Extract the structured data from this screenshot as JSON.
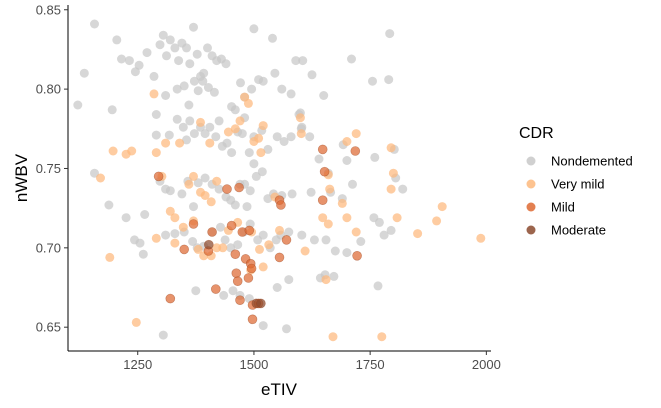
{
  "chart_data": {
    "type": "scatter",
    "title": "",
    "xlabel": "eTIV",
    "ylabel": "nWBV",
    "xlim": [
      1100,
      2010
    ],
    "ylim": [
      0.635,
      0.853
    ],
    "x_ticks": [
      1250,
      1500,
      1750,
      2000
    ],
    "y_ticks": [
      0.65,
      0.7,
      0.75,
      0.8,
      0.85
    ],
    "x_tick_labels": [
      "1250",
      "1500",
      "1750",
      "2000"
    ],
    "y_tick_labels": [
      "0.65",
      "0.70",
      "0.75",
      "0.80",
      "0.85"
    ],
    "grid": false,
    "legend": {
      "title": "CDR",
      "position": "right",
      "entries": [
        "Nondemented",
        "Very mild",
        "Mild",
        "Moderate"
      ]
    },
    "colors": {
      "Nondemented": "#c8c8c8",
      "Very mild": "#fdb97d",
      "Mild": "#de6a33",
      "Moderate": "#8b4a2e"
    },
    "series": [
      {
        "name": "Nondemented",
        "points": [
          [
            1121,
            0.79
          ],
          [
            1135,
            0.81
          ],
          [
            1157,
            0.841
          ],
          [
            1205,
            0.831
          ],
          [
            1215,
            0.819
          ],
          [
            1232,
            0.818
          ],
          [
            1253,
            0.815
          ],
          [
            1245,
            0.811
          ],
          [
            1270,
            0.823
          ],
          [
            1285,
            0.808
          ],
          [
            1298,
            0.828
          ],
          [
            1305,
            0.834
          ],
          [
            1312,
            0.821
          ],
          [
            1320,
            0.831
          ],
          [
            1330,
            0.826
          ],
          [
            1338,
            0.818
          ],
          [
            1345,
            0.829
          ],
          [
            1355,
            0.826
          ],
          [
            1362,
            0.816
          ],
          [
            1370,
            0.839
          ],
          [
            1378,
            0.822
          ],
          [
            1385,
            0.808
          ],
          [
            1392,
            0.81
          ],
          [
            1400,
            0.826
          ],
          [
            1410,
            0.821
          ],
          [
            1420,
            0.818
          ],
          [
            1430,
            0.819
          ],
          [
            1440,
            0.816
          ],
          [
            1500,
            0.838
          ],
          [
            1540,
            0.832
          ],
          [
            1590,
            0.818
          ],
          [
            1605,
            0.818
          ],
          [
            1625,
            0.809
          ],
          [
            1710,
            0.819
          ],
          [
            1792,
            0.835
          ],
          [
            1790,
            0.806
          ],
          [
            1195,
            0.787
          ],
          [
            1290,
            0.784
          ],
          [
            1310,
            0.796
          ],
          [
            1335,
            0.8
          ],
          [
            1350,
            0.802
          ],
          [
            1360,
            0.79
          ],
          [
            1372,
            0.805
          ],
          [
            1380,
            0.799
          ],
          [
            1390,
            0.805
          ],
          [
            1402,
            0.801
          ],
          [
            1415,
            0.798
          ],
          [
            1425,
            0.78
          ],
          [
            1452,
            0.789
          ],
          [
            1460,
            0.787
          ],
          [
            1471,
            0.804
          ],
          [
            1480,
            0.795
          ],
          [
            1495,
            0.8
          ],
          [
            1510,
            0.806
          ],
          [
            1520,
            0.805
          ],
          [
            1545,
            0.81
          ],
          [
            1560,
            0.8
          ],
          [
            1580,
            0.797
          ],
          [
            1597,
            0.784
          ],
          [
            1602,
            0.775
          ],
          [
            1650,
            0.796
          ],
          [
            1755,
            0.805
          ],
          [
            1290,
            0.771
          ],
          [
            1318,
            0.771
          ],
          [
            1335,
            0.781
          ],
          [
            1348,
            0.776
          ],
          [
            1355,
            0.768
          ],
          [
            1362,
            0.78
          ],
          [
            1372,
            0.772
          ],
          [
            1385,
            0.776
          ],
          [
            1395,
            0.772
          ],
          [
            1405,
            0.776
          ],
          [
            1418,
            0.77
          ],
          [
            1432,
            0.764
          ],
          [
            1442,
            0.766
          ],
          [
            1452,
            0.76
          ],
          [
            1465,
            0.773
          ],
          [
            1475,
            0.772
          ],
          [
            1480,
            0.782
          ],
          [
            1490,
            0.76
          ],
          [
            1500,
            0.77
          ],
          [
            1517,
            0.774
          ],
          [
            1530,
            0.762
          ],
          [
            1550,
            0.77
          ],
          [
            1565,
            0.767
          ],
          [
            1580,
            0.77
          ],
          [
            1600,
            0.785
          ],
          [
            1603,
            0.776
          ],
          [
            1620,
            0.77
          ],
          [
            1640,
            0.756
          ],
          [
            1660,
            0.747
          ],
          [
            1692,
            0.765
          ],
          [
            1700,
            0.755
          ],
          [
            1760,
            0.757
          ],
          [
            1802,
            0.762
          ],
          [
            1805,
            0.744
          ],
          [
            1820,
            0.737
          ],
          [
            1157,
            0.747
          ],
          [
            1188,
            0.727
          ],
          [
            1225,
            0.719
          ],
          [
            1265,
            0.721
          ],
          [
            1298,
            0.742
          ],
          [
            1310,
            0.737
          ],
          [
            1320,
            0.736
          ],
          [
            1345,
            0.734
          ],
          [
            1358,
            0.742
          ],
          [
            1370,
            0.726
          ],
          [
            1380,
            0.741
          ],
          [
            1395,
            0.744
          ],
          [
            1410,
            0.74
          ],
          [
            1425,
            0.737
          ],
          [
            1440,
            0.732
          ],
          [
            1450,
            0.73
          ],
          [
            1460,
            0.727
          ],
          [
            1470,
            0.74
          ],
          [
            1480,
            0.74
          ],
          [
            1485,
            0.726
          ],
          [
            1492,
            0.736
          ],
          [
            1500,
            0.753
          ],
          [
            1505,
            0.745
          ],
          [
            1518,
            0.748
          ],
          [
            1530,
            0.731
          ],
          [
            1542,
            0.734
          ],
          [
            1560,
            0.733
          ],
          [
            1582,
            0.734
          ],
          [
            1623,
            0.735
          ],
          [
            1665,
            0.735
          ],
          [
            1690,
            0.731
          ],
          [
            1712,
            0.74
          ],
          [
            1758,
            0.719
          ],
          [
            1770,
            0.716
          ],
          [
            1795,
            0.711
          ],
          [
            1243,
            0.705
          ],
          [
            1255,
            0.703
          ],
          [
            1262,
            0.696
          ],
          [
            1310,
            0.708
          ],
          [
            1330,
            0.709
          ],
          [
            1350,
            0.71
          ],
          [
            1368,
            0.704
          ],
          [
            1378,
            0.7
          ],
          [
            1392,
            0.701
          ],
          [
            1410,
            0.71
          ],
          [
            1428,
            0.713
          ],
          [
            1438,
            0.705
          ],
          [
            1450,
            0.7
          ],
          [
            1465,
            0.702
          ],
          [
            1478,
            0.71
          ],
          [
            1492,
            0.715
          ],
          [
            1508,
            0.705
          ],
          [
            1520,
            0.708
          ],
          [
            1535,
            0.7
          ],
          [
            1548,
            0.705
          ],
          [
            1558,
            0.708
          ],
          [
            1575,
            0.71
          ],
          [
            1603,
            0.708
          ],
          [
            1630,
            0.705
          ],
          [
            1655,
            0.705
          ],
          [
            1675,
            0.698
          ],
          [
            1700,
            0.697
          ],
          [
            1730,
            0.704
          ],
          [
            1780,
            0.708
          ],
          [
            1643,
            0.681
          ],
          [
            1653,
            0.683
          ],
          [
            1672,
            0.682
          ],
          [
            1767,
            0.676
          ],
          [
            1375,
            0.673
          ],
          [
            1435,
            0.67
          ],
          [
            1455,
            0.673
          ],
          [
            1470,
            0.67
          ],
          [
            1490,
            0.668
          ],
          [
            1550,
            0.675
          ],
          [
            1575,
            0.68
          ],
          [
            1305,
            0.645
          ],
          [
            1520,
            0.651
          ],
          [
            1570,
            0.649
          ]
        ]
      },
      {
        "name": "Very mild",
        "points": [
          [
            1170,
            0.744
          ],
          [
            1197,
            0.761
          ],
          [
            1225,
            0.759
          ],
          [
            1237,
            0.761
          ],
          [
            1290,
            0.76
          ],
          [
            1302,
            0.745
          ],
          [
            1310,
            0.766
          ],
          [
            1340,
            0.766
          ],
          [
            1360,
            0.74
          ],
          [
            1370,
            0.745
          ],
          [
            1385,
            0.735
          ],
          [
            1395,
            0.733
          ],
          [
            1408,
            0.729
          ],
          [
            1420,
            0.742
          ],
          [
            1445,
            0.773
          ],
          [
            1460,
            0.775
          ],
          [
            1470,
            0.78
          ],
          [
            1480,
            0.795
          ],
          [
            1488,
            0.791
          ],
          [
            1500,
            0.767
          ],
          [
            1510,
            0.769
          ],
          [
            1515,
            0.76
          ],
          [
            1320,
            0.723
          ],
          [
            1330,
            0.719
          ],
          [
            1348,
            0.713
          ],
          [
            1370,
            0.717
          ],
          [
            1380,
            0.699
          ],
          [
            1392,
            0.695
          ],
          [
            1408,
            0.695
          ],
          [
            1420,
            0.7
          ],
          [
            1433,
            0.7
          ],
          [
            1445,
            0.711
          ],
          [
            1465,
            0.716
          ],
          [
            1495,
            0.71
          ],
          [
            1290,
            0.706
          ],
          [
            1330,
            0.703
          ],
          [
            1190,
            0.694
          ],
          [
            1247,
            0.653
          ],
          [
            1285,
            0.797
          ],
          [
            1385,
            0.779
          ],
          [
            1405,
            0.766
          ],
          [
            1520,
            0.777
          ],
          [
            1600,
            0.782
          ],
          [
            1602,
            0.772
          ],
          [
            1700,
            0.767
          ],
          [
            1720,
            0.772
          ],
          [
            1795,
            0.763
          ],
          [
            1660,
            0.746
          ],
          [
            1663,
            0.737
          ],
          [
            1690,
            0.728
          ],
          [
            1700,
            0.719
          ],
          [
            1648,
            0.719
          ],
          [
            1660,
            0.715
          ],
          [
            1720,
            0.71
          ],
          [
            1795,
            0.737
          ],
          [
            1800,
            0.747
          ],
          [
            1808,
            0.719
          ],
          [
            1852,
            0.709
          ],
          [
            1893,
            0.717
          ],
          [
            1905,
            0.726
          ],
          [
            1988,
            0.706
          ],
          [
            1655,
            0.68
          ],
          [
            1670,
            0.644
          ],
          [
            1775,
            0.644
          ],
          [
            1545,
            0.732
          ],
          [
            1555,
            0.711
          ],
          [
            1532,
            0.702
          ],
          [
            1512,
            0.699
          ],
          [
            1610,
            0.698
          ],
          [
            1493,
            0.686
          ],
          [
            1520,
            0.688
          ]
        ]
      },
      {
        "name": "Mild",
        "points": [
          [
            1295,
            0.745
          ],
          [
            1370,
            0.715
          ],
          [
            1350,
            0.699
          ],
          [
            1320,
            0.668
          ],
          [
            1402,
            0.698
          ],
          [
            1410,
            0.71
          ],
          [
            1418,
            0.674
          ],
          [
            1442,
            0.737
          ],
          [
            1468,
            0.738
          ],
          [
            1452,
            0.714
          ],
          [
            1460,
            0.696
          ],
          [
            1462,
            0.684
          ],
          [
            1475,
            0.71
          ],
          [
            1482,
            0.693
          ],
          [
            1490,
            0.711
          ],
          [
            1493,
            0.69
          ],
          [
            1495,
            0.687
          ],
          [
            1488,
            0.681
          ],
          [
            1465,
            0.679
          ],
          [
            1470,
            0.667
          ],
          [
            1497,
            0.664
          ],
          [
            1497,
            0.655
          ],
          [
            1510,
            0.665
          ],
          [
            1555,
            0.73
          ],
          [
            1558,
            0.727
          ],
          [
            1570,
            0.705
          ],
          [
            1555,
            0.694
          ],
          [
            1648,
            0.762
          ],
          [
            1652,
            0.748
          ],
          [
            1648,
            0.73
          ],
          [
            1718,
            0.761
          ],
          [
            1722,
            0.695
          ]
        ]
      },
      {
        "name": "Moderate",
        "points": [
          [
            1403,
            0.702
          ],
          [
            1505,
            0.665
          ],
          [
            1515,
            0.665
          ]
        ]
      }
    ]
  }
}
